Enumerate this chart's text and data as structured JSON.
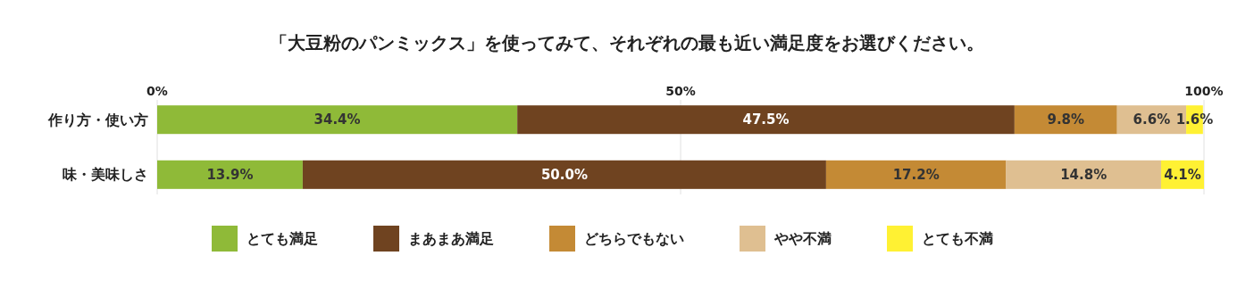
{
  "chart_data": {
    "type": "bar",
    "orientation": "horizontal",
    "stacked": true,
    "title": "「大豆粉のパンミックス」を使ってみて、それぞれの最も近い満足度をお選びください。",
    "categories": [
      "作り方・使い方",
      "味・美味しさ"
    ],
    "series": [
      {
        "name": "とても満足",
        "color": "#8fba38",
        "values": [
          34.4,
          13.9
        ],
        "value_labels": [
          "34.4%",
          "13.9%"
        ]
      },
      {
        "name": "まあまあ満足",
        "color": "#6f4320",
        "values": [
          47.5,
          50.0
        ],
        "value_labels": [
          "47.5%",
          "50.0%"
        ]
      },
      {
        "name": "どちらでもない",
        "color": "#c48a35",
        "values": [
          9.8,
          17.2
        ],
        "value_labels": [
          "9.8%",
          "17.2%"
        ]
      },
      {
        "name": "やや不満",
        "color": "#dfbf91",
        "values": [
          6.6,
          14.8
        ],
        "value_labels": [
          "6.6%",
          "14.8%"
        ]
      },
      {
        "name": "とても不満",
        "color": "#fff133",
        "values": [
          1.6,
          4.1
        ],
        "value_labels": [
          "1.6%",
          "4.1%"
        ]
      }
    ],
    "xlim": [
      0,
      100
    ],
    "xticks": [
      {
        "value": 0,
        "label": "0%"
      },
      {
        "value": 50,
        "label": "50%"
      },
      {
        "value": 100,
        "label": "100%"
      }
    ],
    "grid": "x",
    "legend": "bottom"
  }
}
